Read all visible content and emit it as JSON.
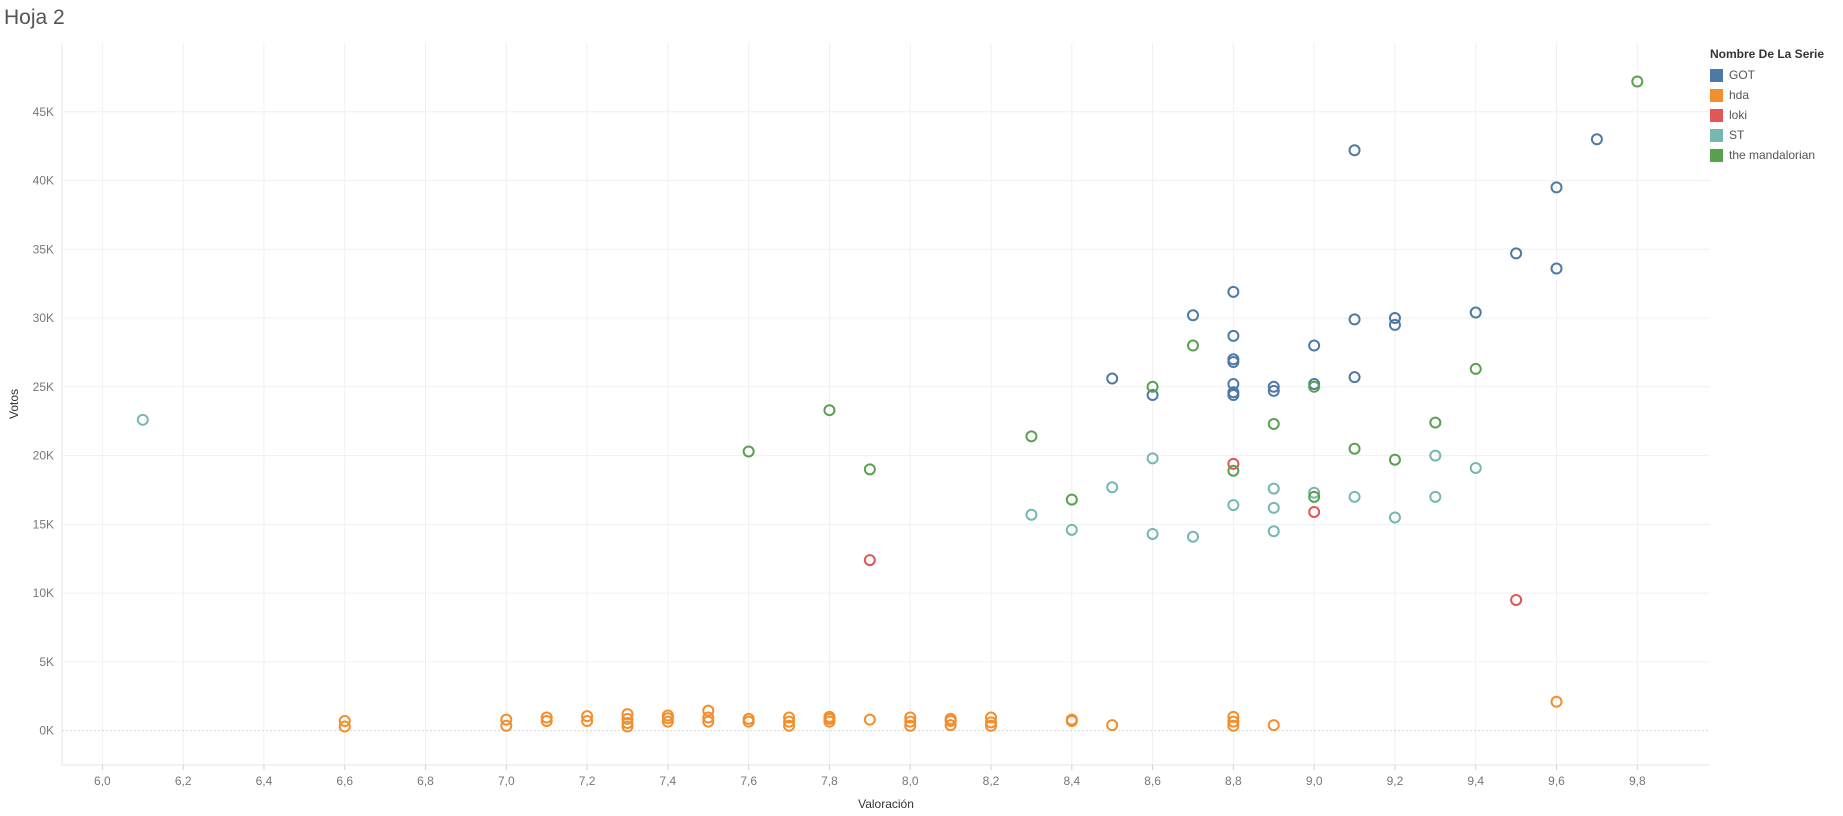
{
  "sheet": {
    "title": "Hoja 2"
  },
  "legend": {
    "title": "Nombre De La Serie",
    "placement": "top-right"
  },
  "colors": {
    "GOT": "#4e79a7",
    "hda": "#f28e2b",
    "loki": "#e15759",
    "ST": "#76b7b2",
    "the mandalorian": "#59a14f"
  },
  "chart_data": {
    "type": "scatter",
    "xlabel": "Valoración",
    "ylabel": "Votos",
    "xlim": [
      5.9,
      9.98
    ],
    "ylim": [
      -2500,
      50000
    ],
    "x_ticks": [
      6.0,
      6.2,
      6.4,
      6.6,
      6.8,
      7.0,
      7.2,
      7.4,
      7.6,
      7.8,
      8.0,
      8.2,
      8.4,
      8.6,
      8.8,
      9.0,
      9.2,
      9.4,
      9.6,
      9.8
    ],
    "x_tick_labels": [
      "6,0",
      "6,2",
      "6,4",
      "6,6",
      "6,8",
      "7,0",
      "7,2",
      "7,4",
      "7,6",
      "7,8",
      "8,0",
      "8,2",
      "8,4",
      "8,6",
      "8,8",
      "9,0",
      "9,2",
      "9,4",
      "9,6",
      "9,8"
    ],
    "y_ticks": [
      0,
      5000,
      10000,
      15000,
      20000,
      25000,
      30000,
      35000,
      40000,
      45000
    ],
    "y_tick_labels": [
      "0K",
      "5K",
      "10K",
      "15K",
      "20K",
      "25K",
      "30K",
      "35K",
      "40K",
      "45K"
    ],
    "grid": true,
    "series": [
      {
        "name": "GOT",
        "points": [
          [
            8.5,
            25600
          ],
          [
            8.6,
            24400
          ],
          [
            8.7,
            30200
          ],
          [
            8.8,
            31900
          ],
          [
            8.8,
            28700
          ],
          [
            8.8,
            27000
          ],
          [
            8.8,
            26800
          ],
          [
            8.8,
            25200
          ],
          [
            8.8,
            24600
          ],
          [
            8.8,
            24400
          ],
          [
            8.9,
            25000
          ],
          [
            8.9,
            24700
          ],
          [
            9.0,
            28000
          ],
          [
            9.0,
            25200
          ],
          [
            9.1,
            42200
          ],
          [
            9.1,
            29900
          ],
          [
            9.1,
            25700
          ],
          [
            9.2,
            30000
          ],
          [
            9.2,
            29500
          ],
          [
            9.4,
            30400
          ],
          [
            9.5,
            34700
          ],
          [
            9.6,
            39500
          ],
          [
            9.6,
            33600
          ],
          [
            9.7,
            43000
          ]
        ]
      },
      {
        "name": "hda",
        "points": [
          [
            6.6,
            700
          ],
          [
            6.6,
            300
          ],
          [
            7.0,
            800
          ],
          [
            7.0,
            350
          ],
          [
            7.1,
            950
          ],
          [
            7.1,
            700
          ],
          [
            7.2,
            1050
          ],
          [
            7.2,
            700
          ],
          [
            7.3,
            1200
          ],
          [
            7.3,
            850
          ],
          [
            7.3,
            550
          ],
          [
            7.3,
            300
          ],
          [
            7.4,
            1100
          ],
          [
            7.4,
            900
          ],
          [
            7.4,
            650
          ],
          [
            7.5,
            1450
          ],
          [
            7.5,
            950
          ],
          [
            7.5,
            650
          ],
          [
            7.6,
            850
          ],
          [
            7.6,
            650
          ],
          [
            7.7,
            950
          ],
          [
            7.7,
            650
          ],
          [
            7.7,
            350
          ],
          [
            7.8,
            1000
          ],
          [
            7.8,
            850
          ],
          [
            7.8,
            650
          ],
          [
            7.9,
            800
          ],
          [
            8.0,
            950
          ],
          [
            8.0,
            650
          ],
          [
            8.0,
            350
          ],
          [
            8.1,
            850
          ],
          [
            8.1,
            700
          ],
          [
            8.1,
            400
          ],
          [
            8.2,
            950
          ],
          [
            8.2,
            600
          ],
          [
            8.2,
            350
          ],
          [
            8.4,
            800
          ],
          [
            8.4,
            700
          ],
          [
            8.5,
            400
          ],
          [
            8.8,
            1000
          ],
          [
            8.8,
            650
          ],
          [
            8.8,
            350
          ],
          [
            8.9,
            400
          ],
          [
            9.6,
            2100
          ]
        ]
      },
      {
        "name": "loki",
        "points": [
          [
            7.9,
            12400
          ],
          [
            8.8,
            19400
          ],
          [
            9.0,
            15900
          ],
          [
            9.5,
            9500
          ]
        ]
      },
      {
        "name": "ST",
        "points": [
          [
            6.1,
            22600
          ],
          [
            8.3,
            15700
          ],
          [
            8.4,
            14600
          ],
          [
            8.5,
            17700
          ],
          [
            8.6,
            19800
          ],
          [
            8.6,
            14300
          ],
          [
            8.7,
            14100
          ],
          [
            8.8,
            16400
          ],
          [
            8.9,
            17600
          ],
          [
            8.9,
            16200
          ],
          [
            8.9,
            14500
          ],
          [
            9.0,
            17300
          ],
          [
            9.1,
            17000
          ],
          [
            9.2,
            15500
          ],
          [
            9.3,
            20000
          ],
          [
            9.3,
            17000
          ],
          [
            9.4,
            19100
          ]
        ]
      },
      {
        "name": "the mandalorian",
        "points": [
          [
            7.6,
            20300
          ],
          [
            7.8,
            23300
          ],
          [
            7.9,
            19000
          ],
          [
            8.3,
            21400
          ],
          [
            8.4,
            16800
          ],
          [
            8.6,
            25000
          ],
          [
            8.7,
            28000
          ],
          [
            8.8,
            18900
          ],
          [
            8.9,
            22300
          ],
          [
            9.0,
            25000
          ],
          [
            9.0,
            17000
          ],
          [
            9.1,
            20500
          ],
          [
            9.2,
            19700
          ],
          [
            9.3,
            22400
          ],
          [
            9.4,
            26300
          ],
          [
            9.8,
            47200
          ]
        ]
      }
    ]
  }
}
